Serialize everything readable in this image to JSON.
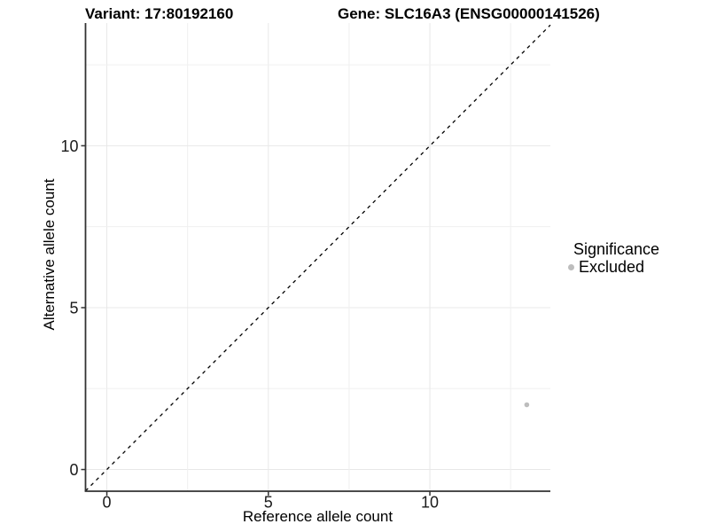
{
  "header": {
    "variant_title": "Variant: 17:80192160",
    "gene_title": "Gene: SLC16A3 (ENSG00000141526)"
  },
  "chart_data": {
    "type": "scatter",
    "title": "Variant: 17:80192160  Gene: SLC16A3 (ENSG00000141526)",
    "xlabel": "Reference allele count",
    "ylabel": "Alternative allele count",
    "xlim": [
      -0.66,
      13.73
    ],
    "ylim": [
      -0.67,
      13.79
    ],
    "x_ticks": [
      0,
      5,
      10
    ],
    "y_ticks": [
      0,
      5,
      10
    ],
    "minor_grid_step": 2.5,
    "grid": true,
    "identity_line": {
      "equation": "y = x",
      "style": "dashed",
      "color": "#000000"
    },
    "series": [
      {
        "name": "Excluded",
        "color": "#bdbdbd",
        "points": [
          {
            "x": 13,
            "y": 2
          }
        ]
      }
    ],
    "legend": {
      "position": "right",
      "title": "Significance",
      "items": [
        {
          "label": "Excluded",
          "color": "#bdbdbd"
        }
      ]
    }
  },
  "colors": {
    "background": "#ffffff",
    "grid_major": "#e8e8e8",
    "grid_minor": "#f0f0f0",
    "axis_line": "#333333",
    "tick_text": "#1a1a1a"
  }
}
